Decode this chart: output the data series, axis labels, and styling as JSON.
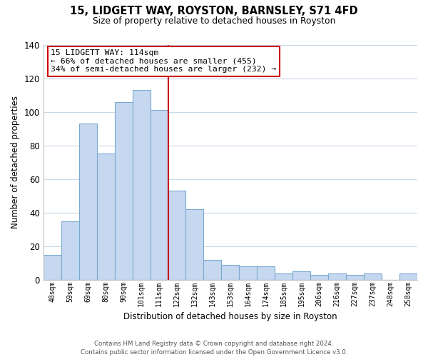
{
  "title": "15, LIDGETT WAY, ROYSTON, BARNSLEY, S71 4FD",
  "subtitle": "Size of property relative to detached houses in Royston",
  "xlabel": "Distribution of detached houses by size in Royston",
  "ylabel": "Number of detached properties",
  "bar_labels": [
    "48sqm",
    "59sqm",
    "69sqm",
    "80sqm",
    "90sqm",
    "101sqm",
    "111sqm",
    "122sqm",
    "132sqm",
    "143sqm",
    "153sqm",
    "164sqm",
    "174sqm",
    "185sqm",
    "195sqm",
    "206sqm",
    "216sqm",
    "227sqm",
    "237sqm",
    "248sqm",
    "258sqm"
  ],
  "bar_values": [
    15,
    35,
    93,
    75,
    106,
    113,
    101,
    53,
    42,
    12,
    9,
    8,
    8,
    4,
    5,
    3,
    4,
    3,
    4,
    0,
    4
  ],
  "bar_color": "#c5d8f0",
  "bar_edge_color": "#7aaad0",
  "marker_index": 6,
  "marker_line_color": "#cc0000",
  "annotation_line1": "15 LIDGETT WAY: 114sqm",
  "annotation_line2": "← 66% of detached houses are smaller (455)",
  "annotation_line3": "34% of semi-detached houses are larger (232) →",
  "annotation_box_color": "#ffffff",
  "annotation_box_edge": "#cc0000",
  "ylim": [
    0,
    140
  ],
  "yticks": [
    0,
    20,
    40,
    60,
    80,
    100,
    120,
    140
  ],
  "footer_line1": "Contains HM Land Registry data © Crown copyright and database right 2024.",
  "footer_line2": "Contains public sector information licensed under the Open Government Licence v3.0.",
  "background_color": "#ffffff",
  "grid_color": "#c8d8e8"
}
